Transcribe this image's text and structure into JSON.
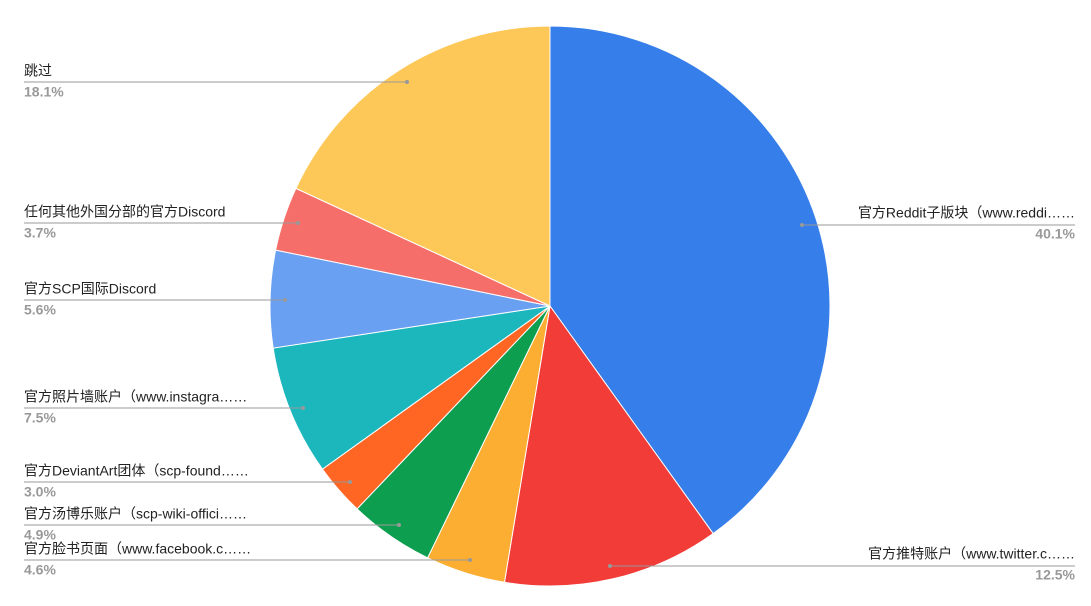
{
  "chart_data": {
    "type": "pie",
    "categories": [
      "官方Reddit子版块（www.reddi……",
      "官方推特账户（www.twitter.c……",
      "官方脸书页面（www.facebook.c……",
      "官方汤博乐账户（scp-wiki-offici……",
      "官方DeviantArt团体（scp-found……",
      "官方照片墙账户（www.instagra……",
      "官方SCP国际Discord",
      "任何其他外国分部的官方Discord",
      "跳过"
    ],
    "values": [
      40.1,
      12.5,
      4.6,
      4.9,
      3.0,
      7.5,
      5.6,
      3.7,
      18.1
    ],
    "value_labels": [
      "40.1%",
      "12.5%",
      "4.6%",
      "4.9%",
      "3.0%",
      "7.5%",
      "5.6%",
      "3.7%",
      "18.1%"
    ],
    "colors": [
      "#367ee9",
      "#f13c38",
      "#fcae33",
      "#0e9e50",
      "#ff6523",
      "#1cb7bd",
      "#6aa0f1",
      "#f56e6a",
      "#fec859"
    ]
  }
}
